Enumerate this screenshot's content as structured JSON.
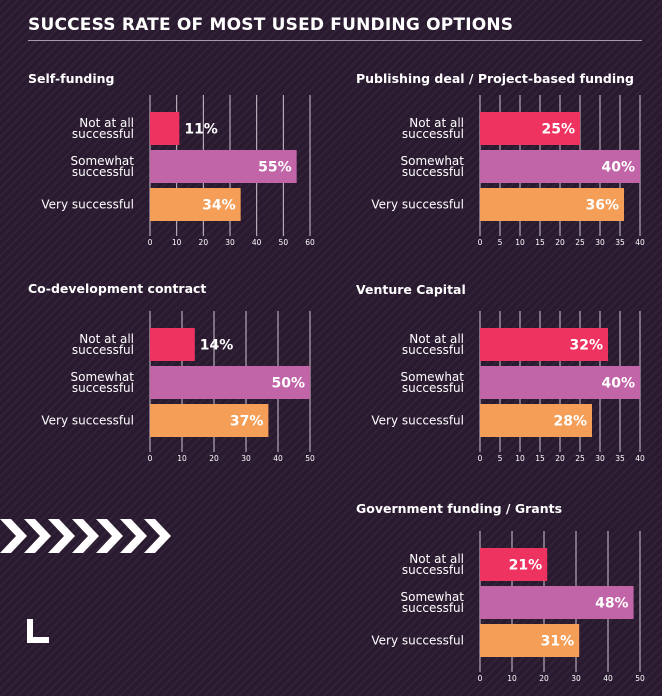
{
  "title": "SUCCESS RATE OF MOST USED FUNDING OPTIONS",
  "colors": {
    "background": "#2a1a30",
    "not_at_all": "#ee3360",
    "somewhat": "#c264a8",
    "very": "#f49e58",
    "grid": "#cfc6cf",
    "text": "#ffffff"
  },
  "decorations": {
    "chevrons": "chevron-right-icon",
    "corner": "corner-bracket-icon"
  },
  "chart_data": [
    {
      "type": "bar",
      "orientation": "horizontal",
      "title": "Self-funding",
      "categories": [
        "Not at all\nsuccessful",
        "Somewhat\nsuccessful",
        "Very successful"
      ],
      "values": [
        11,
        55,
        34
      ],
      "data_labels": [
        "11%",
        "55%",
        "34%"
      ],
      "xlim": [
        0,
        60
      ],
      "xticks": [
        0,
        10,
        20,
        30,
        40,
        50,
        60
      ],
      "grid": true
    },
    {
      "type": "bar",
      "orientation": "horizontal",
      "title": "Publishing deal / Project-based funding",
      "categories": [
        "Not at all\nsuccessful",
        "Somewhat\nsuccessful",
        "Very successful"
      ],
      "values": [
        25,
        40,
        36
      ],
      "data_labels": [
        "25%",
        "40%",
        "36%"
      ],
      "xlim": [
        0,
        40
      ],
      "xticks": [
        0,
        5,
        10,
        15,
        20,
        25,
        30,
        35,
        40
      ],
      "grid": true
    },
    {
      "type": "bar",
      "orientation": "horizontal",
      "title": "Co-development contract",
      "categories": [
        "Not at all\nsuccessful",
        "Somewhat\nsuccessful",
        "Very successful"
      ],
      "values": [
        14,
        50,
        37
      ],
      "data_labels": [
        "14%",
        "50%",
        "37%"
      ],
      "xlim": [
        0,
        50
      ],
      "xticks": [
        0,
        10,
        20,
        30,
        40,
        50
      ],
      "grid": true
    },
    {
      "type": "bar",
      "orientation": "horizontal",
      "title": "Venture Capital",
      "categories": [
        "Not at all\nsuccessful",
        "Somewhat\nsuccessful",
        "Very successful"
      ],
      "values": [
        32,
        40,
        28
      ],
      "data_labels": [
        "32%",
        "40%",
        "28%"
      ],
      "xlim": [
        0,
        40
      ],
      "xticks": [
        0,
        5,
        10,
        15,
        20,
        25,
        30,
        35,
        40
      ],
      "grid": true
    },
    {
      "type": "bar",
      "orientation": "horizontal",
      "title": "Government funding / Grants",
      "categories": [
        "Not at all\nsuccessful",
        "Somewhat\nsuccessful",
        "Very successful"
      ],
      "values": [
        21,
        48,
        31
      ],
      "data_labels": [
        "21%",
        "48%",
        "31%"
      ],
      "xlim": [
        0,
        50
      ],
      "xticks": [
        0,
        10,
        20,
        30,
        40,
        50
      ],
      "grid": true
    }
  ]
}
